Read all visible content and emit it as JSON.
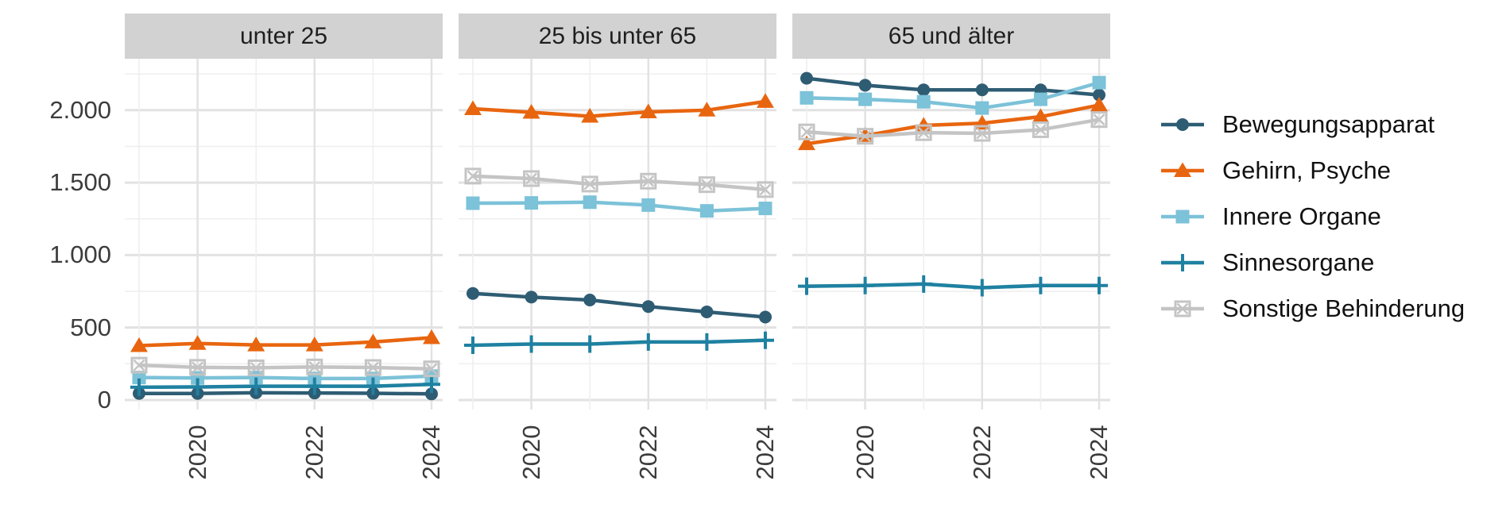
{
  "chart_data": {
    "type": "line",
    "title": "",
    "x": [
      2019,
      2020,
      2021,
      2022,
      2023,
      2024
    ],
    "x_axis": {
      "tick_labels": [
        "2020",
        "2022",
        "2024"
      ],
      "tick_years": [
        2020,
        2022,
        2024
      ]
    },
    "y_axis": {
      "ticks": [
        {
          "value": 2000,
          "label": "2.000"
        },
        {
          "value": 1500,
          "label": "1.500"
        },
        {
          "value": 1000,
          "label": "1.000"
        },
        {
          "value": 500,
          "label": "500"
        },
        {
          "value": 0,
          "label": "0"
        }
      ],
      "minor_gridlines": [
        250,
        750,
        1250,
        1750,
        2250
      ],
      "range": [
        -66,
        2355
      ]
    },
    "grid": true,
    "legend_position": "right",
    "series": [
      {
        "name": "Bewegungsapparat",
        "color": "#2e5c73",
        "marker": "circle"
      },
      {
        "name": "Gehirn, Psyche",
        "color": "#e8650f",
        "marker": "triangle"
      },
      {
        "name": "Innere Organe",
        "color": "#7cc2d8",
        "marker": "square"
      },
      {
        "name": "Sinnesorgane",
        "color": "#1f81a1",
        "marker": "plus"
      },
      {
        "name": "Sonstige Behinderung",
        "color": "#c4c4c4",
        "marker": "square-x"
      }
    ],
    "panels": [
      {
        "title": "unter 25",
        "series": [
          {
            "name": "Bewegungsapparat",
            "values": [
              45,
              45,
              50,
              48,
              46,
              42
            ]
          },
          {
            "name": "Gehirn, Psyche",
            "values": [
              375,
              390,
              380,
              380,
              400,
              430
            ]
          },
          {
            "name": "Innere Organe",
            "values": [
              155,
              152,
              155,
              148,
              148,
              165
            ]
          },
          {
            "name": "Sinnesorgane",
            "values": [
              88,
              90,
              95,
              95,
              95,
              108
            ]
          },
          {
            "name": "Sonstige Behinderung",
            "values": [
              240,
              225,
              222,
              228,
              224,
              215
            ]
          }
        ]
      },
      {
        "title": "25 bis unter 65",
        "series": [
          {
            "name": "Bewegungsapparat",
            "values": [
              735,
              710,
              690,
              645,
              608,
              572
            ]
          },
          {
            "name": "Gehirn, Psyche",
            "values": [
              2010,
              1985,
              1958,
              1988,
              2000,
              2060
            ]
          },
          {
            "name": "Innere Organe",
            "values": [
              1358,
              1360,
              1365,
              1345,
              1305,
              1322
            ]
          },
          {
            "name": "Sinnesorgane",
            "values": [
              378,
              386,
              386,
              400,
              400,
              412
            ]
          },
          {
            "name": "Sonstige Behinderung",
            "values": [
              1545,
              1528,
              1490,
              1510,
              1486,
              1452
            ]
          }
        ]
      },
      {
        "title": "65 und älter",
        "series": [
          {
            "name": "Bewegungsapparat",
            "values": [
              2220,
              2172,
              2140,
              2140,
              2140,
              2105
            ]
          },
          {
            "name": "Gehirn, Psyche",
            "values": [
              1768,
              1825,
              1895,
              1910,
              1955,
              2035
            ]
          },
          {
            "name": "Innere Organe",
            "values": [
              2085,
              2075,
              2058,
              2015,
              2075,
              2190
            ]
          },
          {
            "name": "Sinnesorgane",
            "values": [
              785,
              790,
              800,
              775,
              790,
              790
            ]
          },
          {
            "name": "Sonstige Behinderung",
            "values": [
              1850,
              1820,
              1845,
              1840,
              1865,
              1935
            ]
          }
        ]
      }
    ],
    "style_colors": {
      "facet_header_bg": "#d2d2d2",
      "grid_major": "#e2e2e2",
      "grid_minor": "#efefef",
      "axis_text": "#3c3c3c"
    }
  }
}
